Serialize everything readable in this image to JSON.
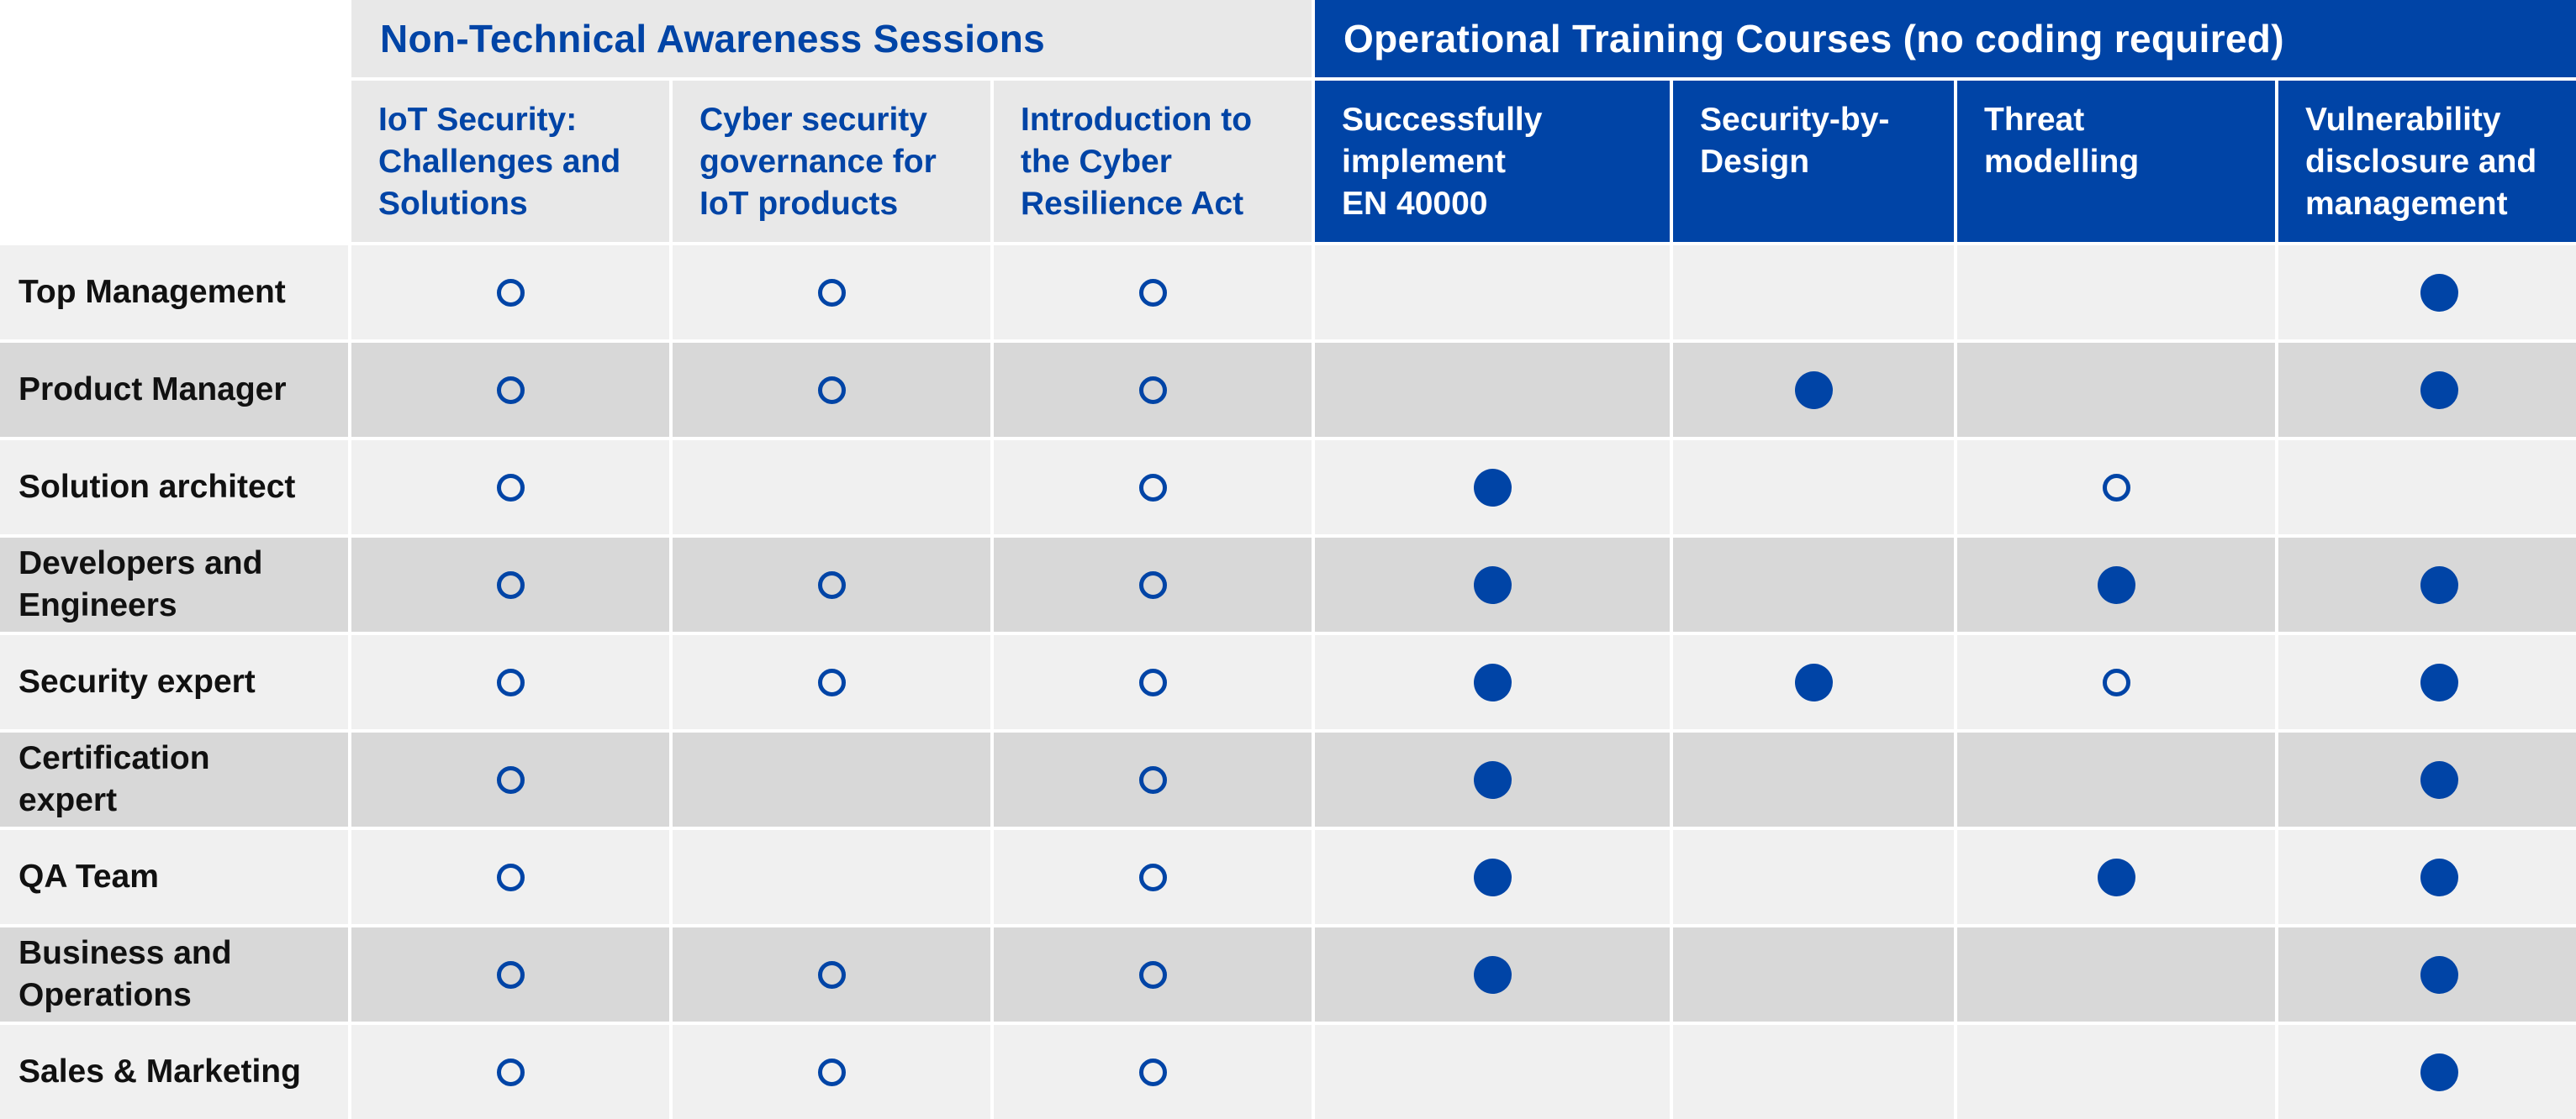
{
  "colors": {
    "accent_blue": "#0044a6",
    "header_grey": "#e8e8e8",
    "row_light": "#f0f0f0",
    "row_dark": "#d8d8d8"
  },
  "groups": {
    "nontech": {
      "label": "Non-Technical Awareness Sessions"
    },
    "ops": {
      "label": "Operational Training Courses (no coding required)"
    }
  },
  "columns": [
    {
      "label": "IoT Security:\nChallenges and\nSolutions",
      "group": "nontech"
    },
    {
      "label": "Cyber security\ngovernance for\nIoT products",
      "group": "nontech"
    },
    {
      "label": "Introduction to\nthe Cyber\nResilience Act",
      "group": "nontech"
    },
    {
      "label": "Successfully\nimplement\nEN 40000",
      "group": "ops"
    },
    {
      "label": "Security-by-\nDesign",
      "group": "ops"
    },
    {
      "label": "Threat\nmodelling",
      "group": "ops"
    },
    {
      "label": "Vulnerability\ndisclosure and\nmanagement",
      "group": "ops"
    }
  ],
  "legend_markers": {
    "open": "open-circle-icon",
    "filled": "filled-circle-icon"
  },
  "rows": [
    {
      "role": "Top Management",
      "marks": [
        "open",
        "open",
        "open",
        "",
        "",
        "",
        "filled"
      ]
    },
    {
      "role": "Product Manager",
      "marks": [
        "open",
        "open",
        "open",
        "",
        "filled",
        "",
        "filled"
      ]
    },
    {
      "role": "Solution architect",
      "marks": [
        "open",
        "",
        "open",
        "filled",
        "",
        "open",
        ""
      ]
    },
    {
      "role": "Developers and\nEngineers",
      "marks": [
        "open",
        "open",
        "open",
        "filled",
        "",
        "filled",
        "filled"
      ]
    },
    {
      "role": "Security expert",
      "marks": [
        "open",
        "open",
        "open",
        "filled",
        "filled",
        "open",
        "filled"
      ]
    },
    {
      "role": "Certification\nexpert",
      "marks": [
        "open",
        "",
        "open",
        "filled",
        "",
        "",
        "filled"
      ]
    },
    {
      "role": "QA Team",
      "marks": [
        "open",
        "",
        "open",
        "filled",
        "",
        "filled",
        "filled"
      ]
    },
    {
      "role": "Business and\nOperations",
      "marks": [
        "open",
        "open",
        "open",
        "filled",
        "",
        "",
        "filled"
      ]
    },
    {
      "role": "Sales & Marketing",
      "marks": [
        "open",
        "open",
        "open",
        "",
        "",
        "",
        "filled"
      ]
    }
  ]
}
